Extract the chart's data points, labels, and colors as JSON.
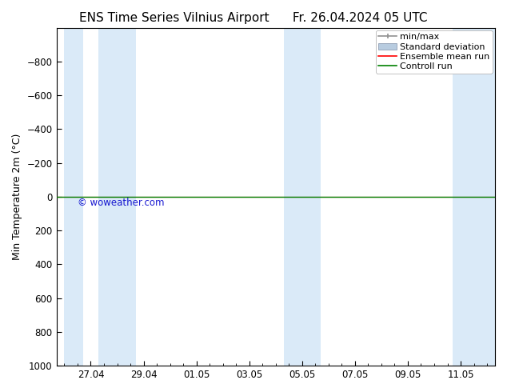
{
  "title_left": "ENS Time Series Vilnius Airport",
  "title_right": "Fr. 26.04.2024 05 UTC",
  "ylabel": "Min Temperature 2m (°C)",
  "ylim": [
    -1000,
    1000
  ],
  "yticks": [
    -800,
    -600,
    -400,
    -200,
    0,
    200,
    400,
    600,
    800,
    1000
  ],
  "xtick_labels": [
    "27.04",
    "29.04",
    "01.05",
    "03.05",
    "05.05",
    "07.05",
    "09.05",
    "11.05"
  ],
  "xtick_positions": [
    1,
    3,
    5,
    7,
    9,
    11,
    13,
    15
  ],
  "xlim": [
    -0.3,
    16.3
  ],
  "shaded_bands": [
    [
      0.0,
      0.7
    ],
    [
      1.3,
      2.7
    ],
    [
      8.3,
      9.7
    ],
    [
      14.7,
      16.3
    ]
  ],
  "horizontal_line_y": 0,
  "line_color_control": "#008000",
  "line_color_ensemble": "#ff0000",
  "shaded_color": "#daeaf8",
  "background_color": "#ffffff",
  "watermark": "© woweather.com",
  "watermark_color": "#0000cc",
  "legend_entries": [
    "min/max",
    "Standard deviation",
    "Ensemble mean run",
    "Controll run"
  ],
  "legend_line_colors": [
    "#909090",
    "#b8cce0",
    "#ff0000",
    "#008000"
  ],
  "title_fontsize": 11,
  "axis_label_fontsize": 9,
  "tick_fontsize": 8.5,
  "legend_fontsize": 8
}
